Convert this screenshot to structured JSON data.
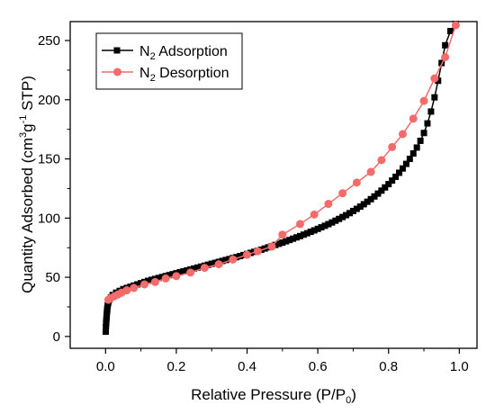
{
  "chart_data": {
    "type": "line",
    "xlabel": {
      "main": "Relative Pressure (P/P",
      "sub": "0",
      "tail": ")"
    },
    "ylabel": {
      "a": "Quantity Adsorbed (cm",
      "sup1": "3",
      "b": "g",
      "sup2": "-1",
      "c": " STP)"
    },
    "xlim": [
      -0.1,
      1.05
    ],
    "ylim": [
      -10,
      266
    ],
    "xticks": [
      0.0,
      0.2,
      0.4,
      0.6,
      0.8,
      1.0
    ],
    "xtick_labels": [
      "0.0",
      "0.2",
      "0.4",
      "0.6",
      "0.8",
      "1.0"
    ],
    "yticks": [
      0,
      50,
      100,
      150,
      200,
      250
    ],
    "ytick_labels": [
      "0",
      "50",
      "100",
      "150",
      "200",
      "250"
    ],
    "legend_position": "top-left",
    "series": [
      {
        "key": "adsorption",
        "legend": {
          "a": "N",
          "sub": "2",
          "b": " Adsorption"
        },
        "color": "#000000",
        "marker": "square",
        "points": [
          [
            0.0005,
            4
          ],
          [
            0.001,
            8
          ],
          [
            0.0015,
            11
          ],
          [
            0.002,
            13
          ],
          [
            0.0025,
            15
          ],
          [
            0.003,
            17
          ],
          [
            0.0035,
            19
          ],
          [
            0.004,
            21
          ],
          [
            0.0045,
            22.5
          ],
          [
            0.005,
            24
          ],
          [
            0.006,
            26
          ],
          [
            0.007,
            28
          ],
          [
            0.008,
            29.5
          ],
          [
            0.01,
            31
          ],
          [
            0.015,
            33
          ],
          [
            0.02,
            35
          ],
          [
            0.03,
            37
          ],
          [
            0.04,
            38.5
          ],
          [
            0.05,
            40
          ],
          [
            0.06,
            41
          ],
          [
            0.07,
            42
          ],
          [
            0.08,
            43
          ],
          [
            0.09,
            44
          ],
          [
            0.1,
            45
          ],
          [
            0.11,
            46
          ],
          [
            0.12,
            47
          ],
          [
            0.13,
            47.8
          ],
          [
            0.14,
            48.6
          ],
          [
            0.15,
            49.4
          ],
          [
            0.16,
            50.2
          ],
          [
            0.17,
            51
          ],
          [
            0.18,
            51.8
          ],
          [
            0.19,
            52.6
          ],
          [
            0.2,
            53.4
          ],
          [
            0.21,
            54.2
          ],
          [
            0.22,
            55
          ],
          [
            0.23,
            55.8
          ],
          [
            0.24,
            56.6
          ],
          [
            0.25,
            57.4
          ],
          [
            0.26,
            58.2
          ],
          [
            0.27,
            59
          ],
          [
            0.28,
            59.8
          ],
          [
            0.29,
            60.6
          ],
          [
            0.3,
            61.4
          ],
          [
            0.31,
            62.2
          ],
          [
            0.32,
            63
          ],
          [
            0.33,
            63.8
          ],
          [
            0.34,
            64.6
          ],
          [
            0.35,
            65.4
          ],
          [
            0.36,
            66.2
          ],
          [
            0.37,
            67
          ],
          [
            0.38,
            67.9
          ],
          [
            0.39,
            68.8
          ],
          [
            0.4,
            69.7
          ],
          [
            0.41,
            70.6
          ],
          [
            0.42,
            71.5
          ],
          [
            0.43,
            72.4
          ],
          [
            0.44,
            73.3
          ],
          [
            0.45,
            74.3
          ],
          [
            0.46,
            75.3
          ],
          [
            0.47,
            76.3
          ],
          [
            0.48,
            77.3
          ],
          [
            0.49,
            78.3
          ],
          [
            0.5,
            79.3
          ],
          [
            0.51,
            80.4
          ],
          [
            0.52,
            81.5
          ],
          [
            0.53,
            82.6
          ],
          [
            0.54,
            83.7
          ],
          [
            0.55,
            84.8
          ],
          [
            0.56,
            86
          ],
          [
            0.57,
            87.2
          ],
          [
            0.58,
            88.4
          ],
          [
            0.59,
            89.6
          ],
          [
            0.6,
            90.9
          ],
          [
            0.61,
            92.2
          ],
          [
            0.62,
            93.5
          ],
          [
            0.63,
            94.9
          ],
          [
            0.64,
            96.3
          ],
          [
            0.65,
            97.8
          ],
          [
            0.66,
            99.3
          ],
          [
            0.67,
            100.9
          ],
          [
            0.68,
            102.5
          ],
          [
            0.69,
            104.2
          ],
          [
            0.7,
            106
          ],
          [
            0.71,
            107.8
          ],
          [
            0.72,
            109.7
          ],
          [
            0.73,
            111.7
          ],
          [
            0.74,
            113.8
          ],
          [
            0.75,
            116
          ],
          [
            0.76,
            118.3
          ],
          [
            0.77,
            120.7
          ],
          [
            0.78,
            123.2
          ],
          [
            0.79,
            125.9
          ],
          [
            0.8,
            128.7
          ],
          [
            0.81,
            131.7
          ],
          [
            0.82,
            134.9
          ],
          [
            0.83,
            138.3
          ],
          [
            0.84,
            141.9
          ],
          [
            0.85,
            145.8
          ],
          [
            0.86,
            150
          ],
          [
            0.87,
            154.6
          ],
          [
            0.88,
            159.6
          ],
          [
            0.89,
            165.3
          ],
          [
            0.9,
            171.9
          ],
          [
            0.91,
            180
          ],
          [
            0.92,
            190
          ],
          [
            0.93,
            202
          ],
          [
            0.94,
            216
          ],
          [
            0.95,
            231
          ],
          [
            0.96,
            246
          ],
          [
            0.975,
            258
          ],
          [
            0.99,
            264
          ]
        ]
      },
      {
        "key": "desorption",
        "legend": {
          "a": "N",
          "sub": "2",
          "b": " Desorption"
        },
        "color": "#f46b6b",
        "marker": "circle",
        "points": [
          [
            0.99,
            263
          ],
          [
            0.96,
            236
          ],
          [
            0.93,
            218
          ],
          [
            0.9,
            199
          ],
          [
            0.87,
            184
          ],
          [
            0.84,
            171
          ],
          [
            0.81,
            160
          ],
          [
            0.78,
            149
          ],
          [
            0.75,
            139
          ],
          [
            0.71,
            130
          ],
          [
            0.67,
            121
          ],
          [
            0.63,
            112
          ],
          [
            0.59,
            103
          ],
          [
            0.55,
            95
          ],
          [
            0.5,
            86
          ],
          [
            0.47,
            76
          ],
          [
            0.43,
            72
          ],
          [
            0.4,
            69
          ],
          [
            0.36,
            65
          ],
          [
            0.32,
            61
          ],
          [
            0.28,
            58
          ],
          [
            0.24,
            54
          ],
          [
            0.2,
            51
          ],
          [
            0.17,
            49
          ],
          [
            0.14,
            46
          ],
          [
            0.11,
            44
          ],
          [
            0.08,
            41
          ],
          [
            0.06,
            39
          ],
          [
            0.045,
            37
          ],
          [
            0.035,
            35.5
          ],
          [
            0.025,
            34
          ],
          [
            0.015,
            32.5
          ],
          [
            0.008,
            31
          ]
        ]
      }
    ]
  }
}
